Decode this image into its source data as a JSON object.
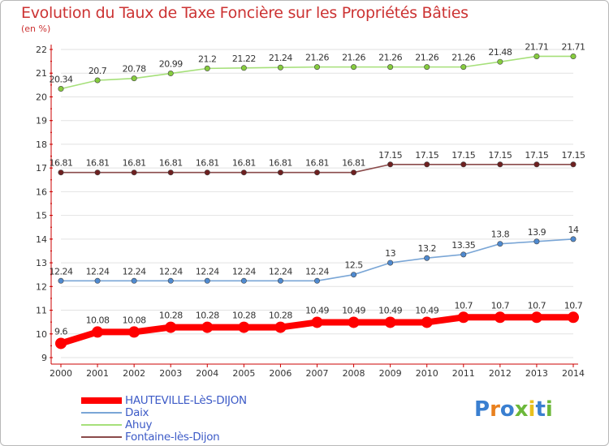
{
  "chart_data": {
    "type": "line",
    "title": "Evolution du Taux de Taxe Foncière sur les Propriétés Bâties",
    "unit_label": "(en %)",
    "x": [
      "2000",
      "2001",
      "2002",
      "2003",
      "2004",
      "2005",
      "2006",
      "2007",
      "2008",
      "2009",
      "2010",
      "2011",
      "2012",
      "2013",
      "2014"
    ],
    "ylim": [
      9,
      22
    ],
    "yticks": [
      "9",
      "10",
      "11",
      "12",
      "13",
      "14",
      "15",
      "16",
      "17",
      "18",
      "19",
      "20",
      "21",
      "22"
    ],
    "series": [
      {
        "name": "HAUTEVILLE-LèS-DIJON",
        "color": "#ff0000",
        "marker_color": "#ff0000",
        "values": [
          9.6,
          10.08,
          10.08,
          10.28,
          10.28,
          10.28,
          10.28,
          10.49,
          10.49,
          10.49,
          10.49,
          10.7,
          10.7,
          10.7,
          10.7
        ],
        "labels": [
          "9.6",
          "10.08",
          "10.08",
          "10.28",
          "10.28",
          "10.28",
          "10.28",
          "10.49",
          "10.49",
          "10.49",
          "10.49",
          "10.7",
          "10.7",
          "10.7",
          "10.7"
        ]
      },
      {
        "name": "Daix",
        "color": "#7aa6d6",
        "marker_color": "#4f8ad0",
        "values": [
          12.24,
          12.24,
          12.24,
          12.24,
          12.24,
          12.24,
          12.24,
          12.24,
          12.5,
          13,
          13.2,
          13.35,
          13.8,
          13.9,
          14
        ],
        "labels": [
          "12.24",
          "12.24",
          "12.24",
          "12.24",
          "12.24",
          "12.24",
          "12.24",
          "12.24",
          "12.5",
          "13",
          "13.2",
          "13.35",
          "13.8",
          "13.9",
          "14"
        ]
      },
      {
        "name": "Ahuy",
        "color": "#a6e07a",
        "marker_color": "#86cc3e",
        "values": [
          20.34,
          20.7,
          20.78,
          20.99,
          21.2,
          21.22,
          21.24,
          21.26,
          21.26,
          21.26,
          21.26,
          21.26,
          21.48,
          21.71,
          21.71
        ],
        "labels": [
          "20.34",
          "20.7",
          "20.78",
          "20.99",
          "21.2",
          "21.22",
          "21.24",
          "21.26",
          "21.26",
          "21.26",
          "21.26",
          "21.26",
          "21.48",
          "21.71",
          "21.71"
        ]
      },
      {
        "name": "Fontaine-lès-Dijon",
        "color": "#8a4a4a",
        "marker_color": "#6e2020",
        "values": [
          16.81,
          16.81,
          16.81,
          16.81,
          16.81,
          16.81,
          16.81,
          16.81,
          16.81,
          17.15,
          17.15,
          17.15,
          17.15,
          17.15,
          17.15
        ],
        "labels": [
          "16.81",
          "16.81",
          "16.81",
          "16.81",
          "16.81",
          "16.81",
          "16.81",
          "16.81",
          "16.81",
          "17.15",
          "17.15",
          "17.15",
          "17.15",
          "17.15",
          "17.15"
        ]
      }
    ]
  },
  "legend": {
    "items": [
      {
        "label": "HAUTEVILLE-LèS-DIJON",
        "color": "#ff0000"
      },
      {
        "label": "Daix",
        "color": "#7aa6d6"
      },
      {
        "label": "Ahuy",
        "color": "#a6e07a"
      },
      {
        "label": "Fontaine-lès-Dijon",
        "color": "#8a4a4a"
      }
    ]
  },
  "logo": {
    "text": "Proxiti"
  },
  "colors": {
    "title": "#cc3333",
    "axis": "#cc0000",
    "grid": "#dddddd",
    "legend_text": "#3d5bc7"
  }
}
